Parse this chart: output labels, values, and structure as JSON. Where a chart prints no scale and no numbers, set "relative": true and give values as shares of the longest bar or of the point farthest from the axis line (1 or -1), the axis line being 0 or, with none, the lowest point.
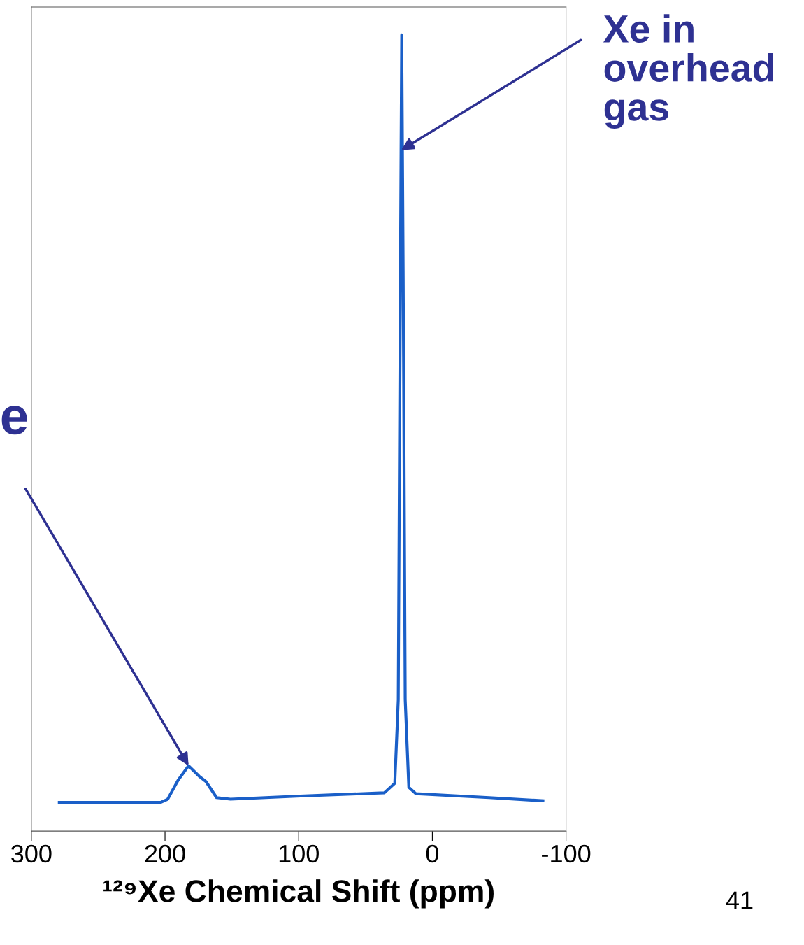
{
  "chart_data": {
    "type": "line",
    "xlabel": "¹²⁹Xe Chemical Shift (ppm)",
    "relative": true,
    "x": [
      279.1,
      203.3,
      198,
      190.2,
      182.4,
      174.5,
      169.3,
      161.4,
      151,
      98.7,
      36,
      28.1,
      25.5,
      23.9,
      23.4,
      22.9,
      21.8,
      20.3,
      17.6,
      12.4,
      -42.5,
      -82.7
    ],
    "series": [
      {
        "color": "#1a5fc8",
        "values": [
          0.036,
          0.036,
          0.04,
          0.064,
          0.082,
          0.069,
          0.062,
          0.042,
          0.04,
          0.044,
          0.048,
          0.06,
          0.165,
          0.693,
          0.855,
          1.0,
          0.693,
          0.165,
          0.055,
          0.047,
          0.042,
          0.038
        ]
      }
    ],
    "xlim": [
      300,
      -100
    ],
    "xticks": [
      300,
      200,
      100,
      0,
      -100
    ],
    "tick_labels": "x",
    "grid": false,
    "legend": false,
    "marker": "none",
    "line_style": "solid",
    "annotations": [
      {
        "text": "Xe in\noverhead\ngas",
        "x": 23.4,
        "y": 0.855
      },
      {
        "text": "e",
        "x": 182.4,
        "y": 0.082
      },
      "41"
    ]
  }
}
